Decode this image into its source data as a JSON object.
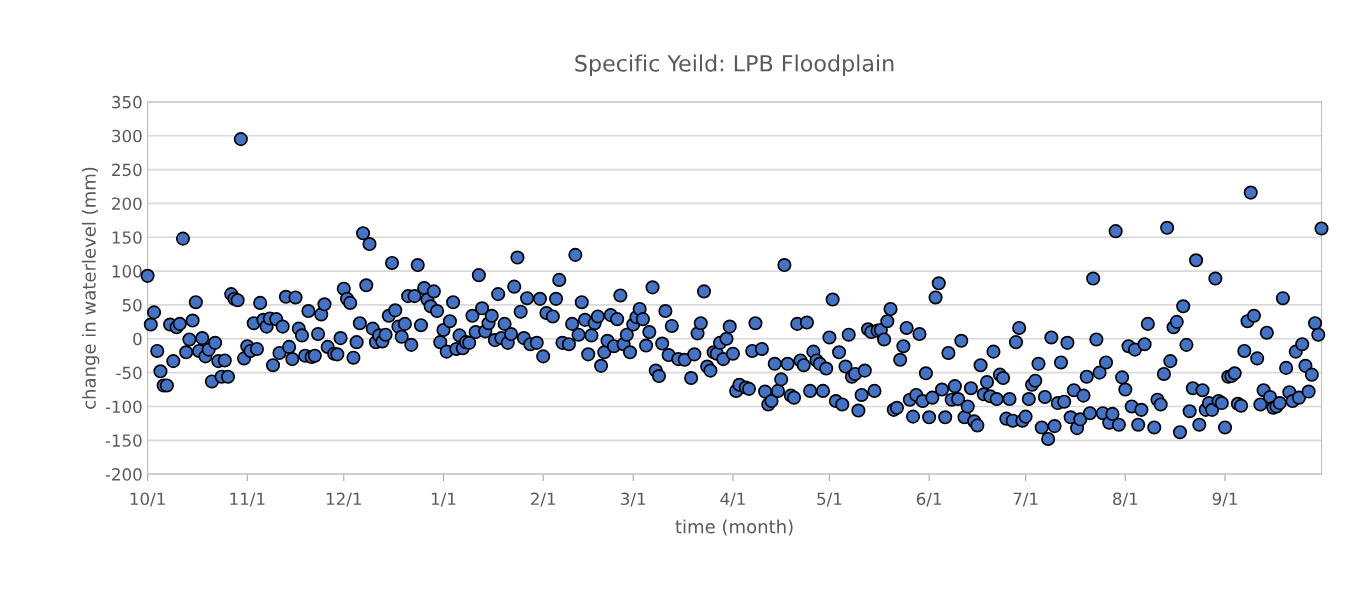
{
  "chart_data": {
    "type": "scatter",
    "title": "Specific Yeild: LPB Floodplain",
    "xlabel": "time (month)",
    "ylabel": "change in waterlevel (mm)",
    "ylim": [
      -200,
      350
    ],
    "yticks": [
      -200,
      -150,
      -100,
      -50,
      0,
      50,
      100,
      150,
      200,
      250,
      300,
      350
    ],
    "grid": "y",
    "marker": "circle",
    "categories": [
      "10/1",
      null,
      null,
      null,
      null,
      null,
      null,
      null,
      null,
      null,
      null,
      null,
      null,
      null,
      null,
      null,
      null,
      null,
      null,
      null,
      null,
      null,
      null,
      null,
      null,
      null,
      null,
      null,
      null,
      null,
      null,
      "11/1",
      null,
      null,
      null,
      null,
      null,
      null,
      null,
      null,
      null,
      null,
      null,
      null,
      null,
      null,
      null,
      null,
      null,
      null,
      null,
      null,
      null,
      null,
      null,
      null,
      null,
      null,
      null,
      null,
      null,
      "12/1",
      null,
      null,
      null,
      null,
      null,
      null,
      null,
      null,
      null,
      null,
      null,
      null,
      null,
      null,
      null,
      null,
      null,
      null,
      null,
      null,
      null,
      null,
      null,
      null,
      null,
      null,
      null,
      null,
      null,
      null,
      "1/1",
      null,
      null,
      null,
      null,
      null,
      null,
      null,
      null,
      null,
      null,
      null,
      null,
      null,
      null,
      null,
      null,
      null,
      null,
      null,
      null,
      null,
      null,
      null,
      null,
      null,
      null,
      null,
      null,
      null,
      null,
      "2/1",
      null,
      null,
      null,
      null,
      null,
      null,
      null,
      null,
      null,
      null,
      null,
      null,
      null,
      null,
      null,
      null,
      null,
      null,
      null,
      null,
      null,
      null,
      null,
      null,
      null,
      null,
      null,
      "3/1",
      null,
      null,
      null,
      null,
      null,
      null,
      null,
      null,
      null,
      null,
      null,
      null,
      null,
      null,
      null,
      null,
      null,
      null,
      null,
      null,
      null,
      null,
      null,
      null,
      null,
      null,
      null,
      null,
      null,
      null,
      "4/1",
      null,
      null,
      null,
      null,
      null,
      null,
      null,
      null,
      null,
      null,
      null,
      null,
      null,
      null,
      null,
      null,
      null,
      null,
      null,
      null,
      null,
      null,
      null,
      null,
      null,
      null,
      null,
      null,
      null,
      "5/1",
      null,
      null,
      null,
      null,
      null,
      null,
      null,
      null,
      null,
      null,
      null,
      null,
      null,
      null,
      null,
      null,
      null,
      null,
      null,
      null,
      null,
      null,
      null,
      null,
      null,
      null,
      null,
      null,
      null,
      null,
      "6/1",
      null,
      null,
      null,
      null,
      null,
      null,
      null,
      null,
      null,
      null,
      null,
      null,
      null,
      null,
      null,
      null,
      null,
      null,
      null,
      null,
      null,
      null,
      null,
      null,
      null,
      null,
      null,
      null,
      null,
      "7/1",
      null,
      null,
      null,
      null,
      null,
      null,
      null,
      null,
      null,
      null,
      null,
      null,
      null,
      null,
      null,
      null,
      null,
      null,
      null,
      null,
      null,
      null,
      null,
      null,
      null,
      null,
      null,
      null,
      null,
      null,
      "8/1",
      null,
      null,
      null,
      null,
      null,
      null,
      null,
      null,
      null,
      null,
      null,
      null,
      null,
      null,
      null,
      null,
      null,
      null,
      null,
      null,
      null,
      null,
      null,
      null,
      null,
      null,
      null,
      null,
      null,
      null,
      "9/1",
      null,
      null,
      null,
      null,
      null,
      null,
      null,
      null,
      null,
      null,
      null,
      null,
      null,
      null,
      null,
      null,
      null,
      null,
      null,
      null,
      null,
      null,
      null,
      null,
      null,
      null,
      null,
      null,
      null,
      null
    ],
    "series": [
      {
        "color": "#4472c4",
        "values": [
          93,
          21,
          39,
          -18,
          -48,
          -69,
          -69,
          21,
          -33,
          17,
          22,
          148,
          -20,
          -1,
          27,
          54,
          -18,
          1,
          -26,
          -16,
          -63,
          -6,
          -33,
          -56,
          -32,
          -56,
          66,
          59,
          57,
          295,
          -29,
          -11,
          -18,
          23,
          -15,
          53,
          28,
          18,
          30,
          -39,
          29,
          -21,
          18,
          62,
          -12,
          -30,
          61,
          15,
          5,
          -25,
          41,
          -27,
          -25,
          7,
          36,
          51,
          -12,
          null,
          -22,
          -23,
          1,
          74,
          59,
          53,
          -28,
          -5,
          23,
          156,
          79,
          140,
          15,
          -5,
          5,
          -4,
          6,
          34,
          112,
          42,
          18,
          3,
          22,
          63,
          -9,
          63,
          109,
          20,
          75,
          58,
          48,
          70,
          41,
          -5,
          13,
          -19,
          26,
          54,
          -15,
          5,
          -14,
          -5,
          -6,
          34,
          10,
          94,
          45,
          11,
          23,
          34,
          -2,
          66,
          1,
          22,
          -6,
          7,
          77,
          120,
          40,
          1,
          60,
          -8,
          null,
          -6,
          59,
          -26,
          38,
          null,
          33,
          59,
          87,
          -6,
          null,
          -8,
          22,
          124,
          6,
          54,
          28,
          -23,
          5,
          23,
          33,
          -40,
          -20,
          -3,
          35,
          -11,
          29,
          64,
          -8,
          6,
          -20,
          21,
          32,
          44,
          29,
          -10,
          10,
          76,
          -47,
          -55,
          -7,
          41,
          -24,
          19,
          null,
          -30,
          null,
          -31,
          null,
          -58,
          -23,
          8,
          23,
          70,
          -41,
          -47,
          -20,
          -22,
          -6,
          -30,
          0,
          18,
          -22,
          -77,
          -68,
          null,
          -72,
          -74,
          -18,
          23,
          null,
          -15,
          -78,
          -97,
          -92,
          -37,
          -77,
          -60,
          109,
          -37,
          -84,
          -87,
          22,
          -32,
          -39,
          24,
          -77,
          -19,
          -32,
          -37,
          -77,
          -44,
          2,
          58,
          -92,
          -20,
          -97,
          -41,
          6,
          -56,
          -52,
          -106,
          -83,
          -47,
          14,
          10,
          -77,
          12,
          13,
          -1,
          26,
          44,
          -105,
          -102,
          -31,
          -11,
          16,
          -90,
          -115,
          -83,
          7,
          -92,
          -51,
          -116,
          -87,
          61,
          82,
          -75,
          -116,
          -21,
          -90,
          -70,
          -89,
          -3,
          -116,
          -100,
          -73,
          -122,
          -128,
          -39,
          -82,
          -64,
          -85,
          -19,
          -89,
          -53,
          -58,
          -118,
          -89,
          -121,
          -5,
          16,
          -121,
          -115,
          -89,
          -68,
          -62,
          -37,
          -131,
          -86,
          -148,
          2,
          -129,
          -95,
          -35,
          -93,
          -6,
          -116,
          -76,
          -132,
          -119,
          -84,
          -56,
          -110,
          89,
          -1,
          -50,
          -110,
          -35,
          -124,
          -111,
          159,
          -127,
          -57,
          -75,
          -11,
          -100,
          -16,
          -127,
          -105,
          -8,
          22,
          null,
          -131,
          -90,
          -97,
          -52,
          164,
          -33,
          17,
          25,
          -138,
          48,
          -9,
          -107,
          -73,
          116,
          -127,
          -76,
          -105,
          -95,
          -105,
          89,
          -92,
          -95,
          -131,
          -56,
          -55,
          -51,
          -96,
          -99,
          -18,
          26,
          216,
          34,
          -29,
          -97,
          -76,
          9,
          -86,
          -102,
          -100,
          -95,
          60,
          -43,
          -79,
          -92,
          -19,
          -87,
          -8,
          -40,
          -78,
          -53,
          23,
          6,
          163
        ]
      }
    ]
  }
}
